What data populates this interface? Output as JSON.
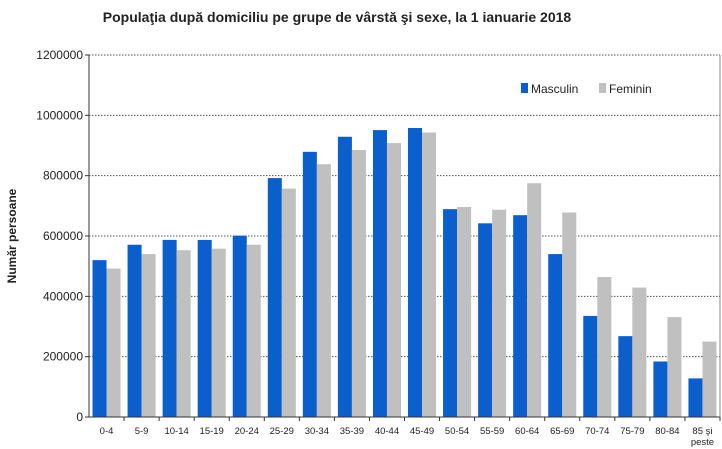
{
  "chart_data": {
    "type": "bar",
    "title": "Populaţia după domiciliu pe grupe de vârstă şi sexe, la 1 ianuarie 2018",
    "xlabel": "",
    "ylabel": "Număr persoane",
    "ylim": [
      0,
      1200000
    ],
    "yticks": [
      "0",
      "200000",
      "400000",
      "600000",
      "800000",
      "1000000",
      "1200000"
    ],
    "grid": true,
    "legend_position": "top-right",
    "categories": [
      "0-4",
      "5-9",
      "10-14",
      "15-19",
      "20-24",
      "25-29",
      "30-34",
      "35-39",
      "40-44",
      "45-49",
      "50-54",
      "55-59",
      "60-64",
      "65-69",
      "70-74",
      "75-79",
      "80-84",
      "85 şi peste"
    ],
    "series": [
      {
        "name": "Masculin",
        "color": "#0a5fcc",
        "values": [
          520000,
          571000,
          587000,
          587000,
          601000,
          792000,
          879000,
          929000,
          951000,
          958000,
          689000,
          642000,
          669000,
          540000,
          335000,
          268000,
          184000,
          128000
        ]
      },
      {
        "name": "Feminin",
        "color": "#c0c0c0",
        "values": [
          492000,
          540000,
          553000,
          558000,
          571000,
          757000,
          838000,
          885000,
          908000,
          943000,
          696000,
          687000,
          775000,
          678000,
          464000,
          429000,
          331000,
          250000
        ]
      }
    ]
  }
}
